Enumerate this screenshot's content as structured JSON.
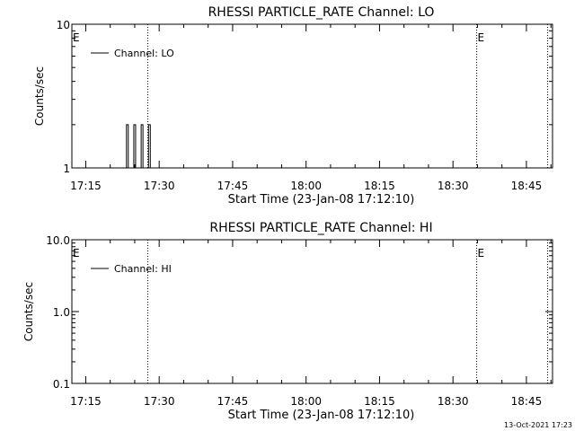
{
  "footer": {
    "timestamp": "13-Oct-2021 17:23"
  },
  "chart_data": [
    {
      "type": "line",
      "title": "RHESSI PARTICLE_RATE Channel: LO",
      "xlabel": "Start Time (23-Jan-08 17:12:10)",
      "ylabel": "Counts/sec",
      "y_scale": "log",
      "ylim": [
        1,
        10
      ],
      "y_ticks": [
        {
          "value": 1,
          "label": "1"
        },
        {
          "value": 10,
          "label": "10"
        }
      ],
      "xlim": [
        "17:12:10",
        "18:50:20"
      ],
      "x_ticks": [
        "17:15",
        "17:30",
        "17:45",
        "18:00",
        "18:15",
        "18:30",
        "18:45"
      ],
      "legend": {
        "placement": "top-left",
        "entries": [
          "Channel: LO"
        ]
      },
      "event_lines": [
        {
          "time": "17:27:40",
          "label": ""
        },
        {
          "time": "18:34:50",
          "label": "E"
        },
        {
          "time": "18:49:20",
          "label": ""
        }
      ],
      "start_marker": "E",
      "series": [
        {
          "name": "Channel: LO",
          "spikes": [
            {
              "time": "17:23:30",
              "value": 2
            },
            {
              "time": "17:25:00",
              "value": 2
            },
            {
              "time": "17:26:30",
              "value": 2
            },
            {
              "time": "17:28:00",
              "value": 2
            }
          ]
        }
      ]
    },
    {
      "type": "line",
      "title": "RHESSI PARTICLE_RATE Channel: HI",
      "xlabel": "Start Time (23-Jan-08 17:12:10)",
      "ylabel": "Counts/sec",
      "y_scale": "log",
      "ylim": [
        0.1,
        10
      ],
      "y_ticks": [
        {
          "value": 0.1,
          "label": "0.1"
        },
        {
          "value": 1,
          "label": "1.0"
        },
        {
          "value": 10,
          "label": "10.0"
        }
      ],
      "xlim": [
        "17:12:10",
        "18:50:20"
      ],
      "x_ticks": [
        "17:15",
        "17:30",
        "17:45",
        "18:00",
        "18:15",
        "18:30",
        "18:45"
      ],
      "legend": {
        "placement": "top-left",
        "entries": [
          "Channel: HI"
        ]
      },
      "event_lines": [
        {
          "time": "17:27:40",
          "label": ""
        },
        {
          "time": "18:34:50",
          "label": "E"
        },
        {
          "time": "18:49:20",
          "label": ""
        }
      ],
      "start_marker": "E",
      "series": [
        {
          "name": "Channel: HI",
          "spikes": []
        }
      ]
    }
  ]
}
